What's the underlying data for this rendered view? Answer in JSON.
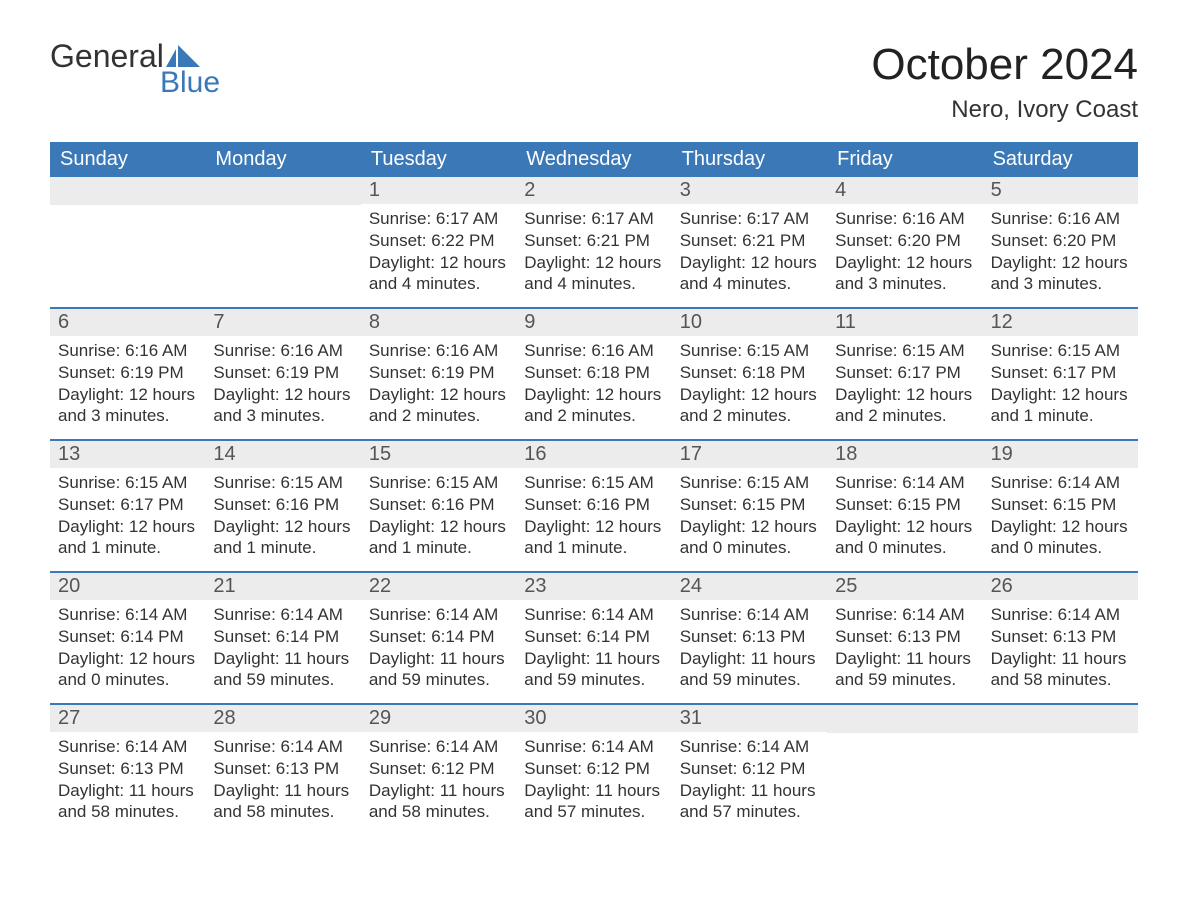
{
  "brand": {
    "word1": "General",
    "word2": "Blue"
  },
  "title": "October 2024",
  "location": "Nero, Ivory Coast",
  "colors": {
    "header_bg": "#3a78b8",
    "header_fg": "#ffffff",
    "daynum_bg": "#ececec",
    "daynum_fg": "#555555",
    "body_fg": "#333333",
    "rule": "#3a78b8",
    "page_bg": "#ffffff",
    "logo_accent": "#3a78b8"
  },
  "typography": {
    "title_fontsize": 44,
    "location_fontsize": 24,
    "weekday_fontsize": 20,
    "daynum_fontsize": 20,
    "body_fontsize": 17
  },
  "layout": {
    "columns": 7,
    "rows": 5,
    "first_weekday_index": 2
  },
  "weekdays": [
    "Sunday",
    "Monday",
    "Tuesday",
    "Wednesday",
    "Thursday",
    "Friday",
    "Saturday"
  ],
  "days": [
    {
      "n": 1,
      "sunrise": "6:17 AM",
      "sunset": "6:22 PM",
      "daylight": "12 hours and 4 minutes."
    },
    {
      "n": 2,
      "sunrise": "6:17 AM",
      "sunset": "6:21 PM",
      "daylight": "12 hours and 4 minutes."
    },
    {
      "n": 3,
      "sunrise": "6:17 AM",
      "sunset": "6:21 PM",
      "daylight": "12 hours and 4 minutes."
    },
    {
      "n": 4,
      "sunrise": "6:16 AM",
      "sunset": "6:20 PM",
      "daylight": "12 hours and 3 minutes."
    },
    {
      "n": 5,
      "sunrise": "6:16 AM",
      "sunset": "6:20 PM",
      "daylight": "12 hours and 3 minutes."
    },
    {
      "n": 6,
      "sunrise": "6:16 AM",
      "sunset": "6:19 PM",
      "daylight": "12 hours and 3 minutes."
    },
    {
      "n": 7,
      "sunrise": "6:16 AM",
      "sunset": "6:19 PM",
      "daylight": "12 hours and 3 minutes."
    },
    {
      "n": 8,
      "sunrise": "6:16 AM",
      "sunset": "6:19 PM",
      "daylight": "12 hours and 2 minutes."
    },
    {
      "n": 9,
      "sunrise": "6:16 AM",
      "sunset": "6:18 PM",
      "daylight": "12 hours and 2 minutes."
    },
    {
      "n": 10,
      "sunrise": "6:15 AM",
      "sunset": "6:18 PM",
      "daylight": "12 hours and 2 minutes."
    },
    {
      "n": 11,
      "sunrise": "6:15 AM",
      "sunset": "6:17 PM",
      "daylight": "12 hours and 2 minutes."
    },
    {
      "n": 12,
      "sunrise": "6:15 AM",
      "sunset": "6:17 PM",
      "daylight": "12 hours and 1 minute."
    },
    {
      "n": 13,
      "sunrise": "6:15 AM",
      "sunset": "6:17 PM",
      "daylight": "12 hours and 1 minute."
    },
    {
      "n": 14,
      "sunrise": "6:15 AM",
      "sunset": "6:16 PM",
      "daylight": "12 hours and 1 minute."
    },
    {
      "n": 15,
      "sunrise": "6:15 AM",
      "sunset": "6:16 PM",
      "daylight": "12 hours and 1 minute."
    },
    {
      "n": 16,
      "sunrise": "6:15 AM",
      "sunset": "6:16 PM",
      "daylight": "12 hours and 1 minute."
    },
    {
      "n": 17,
      "sunrise": "6:15 AM",
      "sunset": "6:15 PM",
      "daylight": "12 hours and 0 minutes."
    },
    {
      "n": 18,
      "sunrise": "6:14 AM",
      "sunset": "6:15 PM",
      "daylight": "12 hours and 0 minutes."
    },
    {
      "n": 19,
      "sunrise": "6:14 AM",
      "sunset": "6:15 PM",
      "daylight": "12 hours and 0 minutes."
    },
    {
      "n": 20,
      "sunrise": "6:14 AM",
      "sunset": "6:14 PM",
      "daylight": "12 hours and 0 minutes."
    },
    {
      "n": 21,
      "sunrise": "6:14 AM",
      "sunset": "6:14 PM",
      "daylight": "11 hours and 59 minutes."
    },
    {
      "n": 22,
      "sunrise": "6:14 AM",
      "sunset": "6:14 PM",
      "daylight": "11 hours and 59 minutes."
    },
    {
      "n": 23,
      "sunrise": "6:14 AM",
      "sunset": "6:14 PM",
      "daylight": "11 hours and 59 minutes."
    },
    {
      "n": 24,
      "sunrise": "6:14 AM",
      "sunset": "6:13 PM",
      "daylight": "11 hours and 59 minutes."
    },
    {
      "n": 25,
      "sunrise": "6:14 AM",
      "sunset": "6:13 PM",
      "daylight": "11 hours and 59 minutes."
    },
    {
      "n": 26,
      "sunrise": "6:14 AM",
      "sunset": "6:13 PM",
      "daylight": "11 hours and 58 minutes."
    },
    {
      "n": 27,
      "sunrise": "6:14 AM",
      "sunset": "6:13 PM",
      "daylight": "11 hours and 58 minutes."
    },
    {
      "n": 28,
      "sunrise": "6:14 AM",
      "sunset": "6:13 PM",
      "daylight": "11 hours and 58 minutes."
    },
    {
      "n": 29,
      "sunrise": "6:14 AM",
      "sunset": "6:12 PM",
      "daylight": "11 hours and 58 minutes."
    },
    {
      "n": 30,
      "sunrise": "6:14 AM",
      "sunset": "6:12 PM",
      "daylight": "11 hours and 57 minutes."
    },
    {
      "n": 31,
      "sunrise": "6:14 AM",
      "sunset": "6:12 PM",
      "daylight": "11 hours and 57 minutes."
    }
  ],
  "labels": {
    "sunrise": "Sunrise:",
    "sunset": "Sunset:",
    "daylight": "Daylight:"
  }
}
